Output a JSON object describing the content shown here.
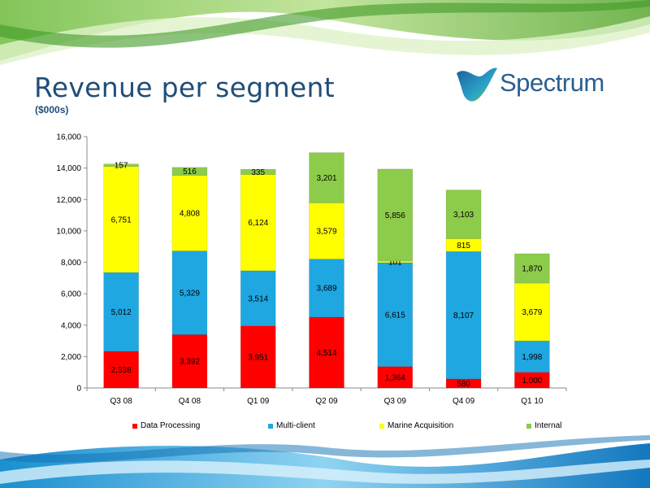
{
  "page": {
    "title": "Revenue per segment",
    "subtitle": "($000s)",
    "logo_text": "Spectrum"
  },
  "colors": {
    "title": "#1f4e79",
    "data_processing": "#ff0000",
    "multi_client": "#1fa7e1",
    "marine_acquisition": "#ffff00",
    "internal": "#8dcb4a"
  },
  "chart_data": {
    "type": "bar",
    "stacked": true,
    "categories": [
      "Q3 08",
      "Q4 08",
      "Q1 09",
      "Q2 09",
      "Q3 09",
      "Q4 09",
      "Q1 10"
    ],
    "series": [
      {
        "name": "Data Processing",
        "color": "#ff0000",
        "values": [
          2338,
          3392,
          3951,
          4514,
          1364,
          580,
          1000
        ],
        "labels": [
          "2,338",
          "3,392",
          "3,951",
          "4,514",
          "1,364",
          "580",
          "1,000"
        ]
      },
      {
        "name": "Multi-client",
        "color": "#1fa7e1",
        "values": [
          5012,
          5329,
          3514,
          3689,
          6615,
          8107,
          1998
        ],
        "labels": [
          "5,012",
          "5,329",
          "3,514",
          "3,689",
          "6,615",
          "8,107",
          "1,998"
        ]
      },
      {
        "name": "Marine Acquisition",
        "color": "#ffff00",
        "values": [
          6751,
          4808,
          6124,
          3579,
          101,
          815,
          3679
        ],
        "labels": [
          "6,751",
          "4,808",
          "6,124",
          "3,579",
          "101",
          "815",
          "3,679"
        ]
      },
      {
        "name": "Internal",
        "color": "#8dcb4a",
        "values": [
          157,
          516,
          335,
          3201,
          5856,
          3103,
          1870
        ],
        "labels": [
          "157",
          "516",
          "335",
          "3,201",
          "5,856",
          "3,103",
          "1,870"
        ]
      }
    ],
    "ylim": [
      0,
      16000
    ],
    "yticks": [
      0,
      2000,
      4000,
      6000,
      8000,
      10000,
      12000,
      14000,
      16000
    ],
    "ytick_labels": [
      "0",
      "2,000",
      "4,000",
      "6,000",
      "8,000",
      "10,000",
      "12,000",
      "14,000",
      "16,000"
    ],
    "grid": false,
    "legend_position": "bottom"
  }
}
